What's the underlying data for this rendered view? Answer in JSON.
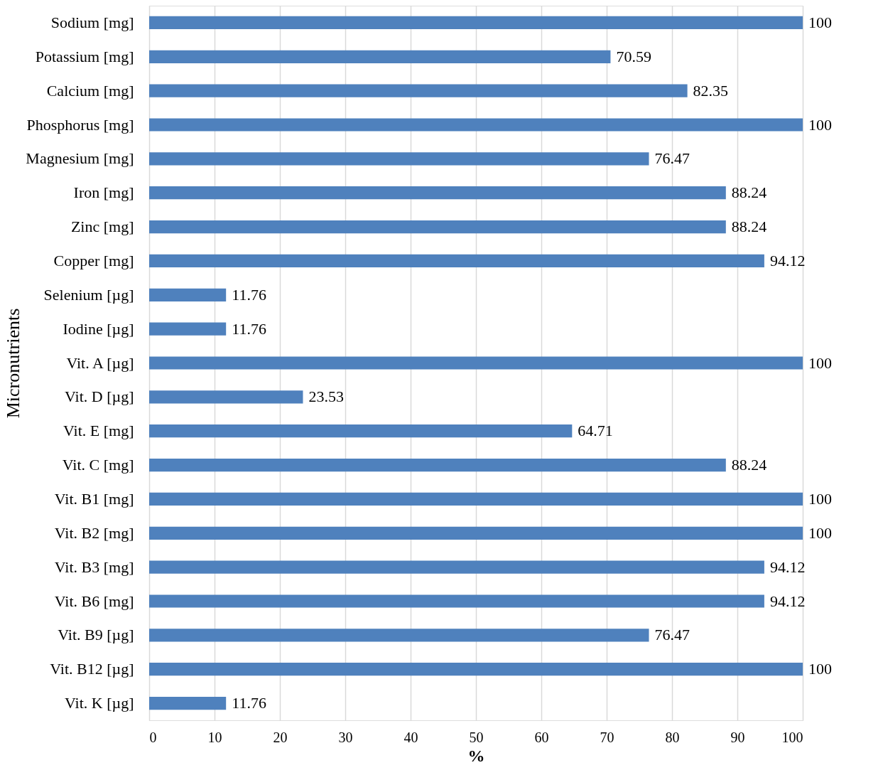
{
  "chart_data": {
    "type": "bar",
    "orientation": "horizontal",
    "xlabel": "%",
    "ylabel": "Micronutrients",
    "categories": [
      "Sodium [mg]",
      "Potassium [mg]",
      "Calcium [mg]",
      "Phosphorus [mg]",
      "Magnesium [mg]",
      "Iron [mg]",
      "Zinc [mg]",
      "Copper [mg]",
      "Selenium [µg]",
      "Iodine [µg]",
      "Vit. A [µg]",
      "Vit. D [µg]",
      "Vit. E [mg]",
      "Vit. C [mg]",
      "Vit. B1 [mg]",
      "Vit. B2 [mg]",
      "Vit. B3 [mg]",
      "Vit. B6 [mg]",
      "Vit. B9 [µg]",
      "Vit. B12 [µg]",
      "Vit. K [µg]"
    ],
    "values": [
      100,
      70.59,
      82.35,
      100,
      76.47,
      88.24,
      88.24,
      94.12,
      11.76,
      11.76,
      100,
      23.53,
      64.71,
      88.24,
      100,
      100,
      94.12,
      94.12,
      76.47,
      100,
      11.76
    ],
    "color": "#4f81bd",
    "xlim": [
      0,
      100
    ],
    "xticks": [
      0,
      10,
      20,
      30,
      40,
      50,
      60,
      70,
      80,
      90,
      100
    ],
    "grid": "x",
    "data_labels": true
  }
}
